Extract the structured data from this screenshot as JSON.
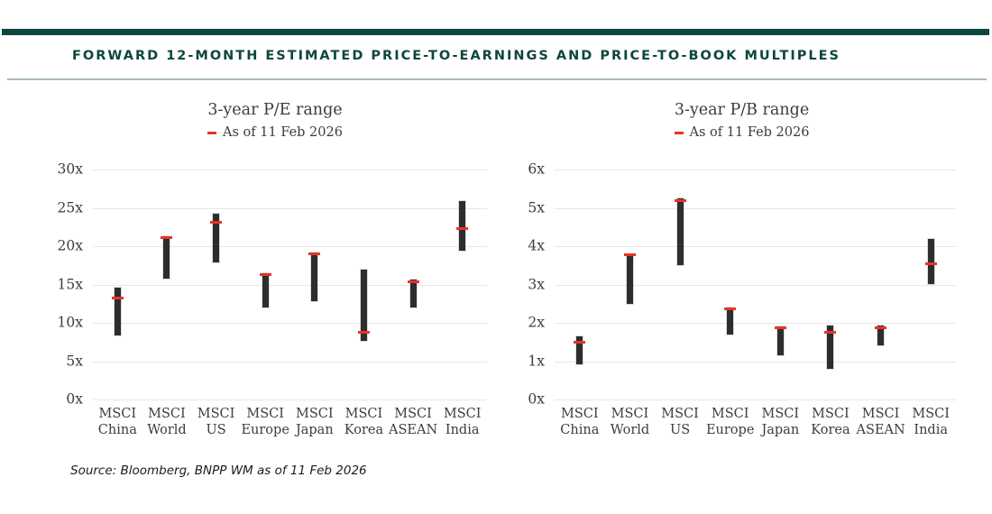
{
  "header": {
    "title": "FORWARD 12-MONTH ESTIMATED PRICE-TO-EARNINGS AND PRICE-TO-BOOK MULTIPLES"
  },
  "source": "Source: Bloomberg, BNPP WM as of 11 Feb 2026",
  "colors": {
    "accent_teal": "#0e453e",
    "bar_dark": "#2d2d2d",
    "marker_red": "#e8332a",
    "gridline": "#e7e7e7"
  },
  "chart_data": [
    {
      "type": "range-bar",
      "title": "3-year P/E range",
      "legend_position": "top-center",
      "grid": true,
      "ylim": [
        0,
        30
      ],
      "ytick_step": 5,
      "ytick_suffix": "x",
      "categories": [
        "MSCI China",
        "MSCI World",
        "MSCI US",
        "MSCI Europe",
        "MSCI Japan",
        "MSCI Korea",
        "MSCI ASEAN",
        "MSCI India"
      ],
      "series": [
        {
          "name": "3-year range",
          "role": "range",
          "low": [
            8.3,
            15.8,
            17.9,
            12.0,
            12.8,
            7.7,
            12.0,
            19.4
          ],
          "high": [
            14.6,
            21.3,
            24.2,
            16.5,
            19.2,
            17.0,
            15.6,
            25.9
          ]
        },
        {
          "name": "As of 11 Feb 2026",
          "role": "marker",
          "values": [
            13.2,
            21.1,
            23.1,
            16.3,
            19.0,
            8.8,
            15.4,
            22.3
          ]
        }
      ]
    },
    {
      "type": "range-bar",
      "title": "3-year P/B range",
      "legend_position": "top-center",
      "grid": true,
      "ylim": [
        0,
        6
      ],
      "ytick_step": 1,
      "ytick_suffix": "x",
      "categories": [
        "MSCI China",
        "MSCI World",
        "MSCI US",
        "MSCI Europe",
        "MSCI Japan",
        "MSCI Korea",
        "MSCI ASEAN",
        "MSCI India"
      ],
      "series": [
        {
          "name": "3-year range",
          "role": "range",
          "low": [
            0.92,
            2.5,
            3.5,
            1.7,
            1.15,
            0.8,
            1.42,
            3.02
          ],
          "high": [
            1.65,
            3.8,
            5.25,
            2.4,
            1.9,
            1.93,
            1.92,
            4.18
          ]
        },
        {
          "name": "As of 11 Feb 2026",
          "role": "marker",
          "values": [
            1.5,
            3.77,
            5.2,
            2.36,
            1.86,
            1.75,
            1.88,
            3.55
          ]
        }
      ]
    }
  ]
}
